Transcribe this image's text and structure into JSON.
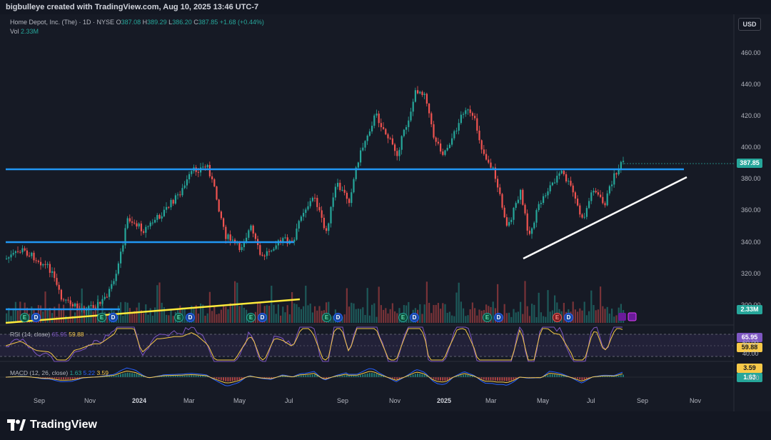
{
  "header": {
    "credit": "bigbulleye created with TradingView.com, Aug 10, 2025 13:46 UTC-7"
  },
  "legend": {
    "symbol": "Home Depot, Inc. (The) · 1D · NYSE",
    "o_label": "O",
    "o": "387.08",
    "h_label": "H",
    "h": "389.29",
    "l_label": "L",
    "l": "386.20",
    "c_label": "C",
    "c": "387.85",
    "change": "+1.68 (+0.44%)",
    "vol_label": "Vol",
    "vol": "2.33M"
  },
  "currency_button": "USD",
  "price_axis": [
    "460.00",
    "440.00",
    "420.00",
    "400.00",
    "380.00",
    "360.00",
    "340.00",
    "320.00",
    "300.00"
  ],
  "last_price_tag": "387.85",
  "volume_tag": "2.33M",
  "rsi": {
    "label": "RSI (14, close)",
    "v1": "65.95",
    "v2": "59.88",
    "tag1": "65.95",
    "tag2": "59.88",
    "axis": [
      "60.00",
      "40.00"
    ]
  },
  "macd": {
    "label": "MACD (12, 26, close)",
    "v1": "1.63",
    "v2": "5.22",
    "v3": "3.59",
    "tag1": "3.59",
    "tag2": "1.63",
    "axis": "0.00"
  },
  "time_axis": [
    {
      "label": "Sep",
      "bold": false
    },
    {
      "label": "Nov",
      "bold": false
    },
    {
      "label": "2024",
      "bold": true
    },
    {
      "label": "Mar",
      "bold": false
    },
    {
      "label": "May",
      "bold": false
    },
    {
      "label": "Jul",
      "bold": false
    },
    {
      "label": "Sep",
      "bold": false
    },
    {
      "label": "Nov",
      "bold": false
    },
    {
      "label": "2025",
      "bold": true
    },
    {
      "label": "Mar",
      "bold": false
    },
    {
      "label": "May",
      "bold": false
    },
    {
      "label": "Jul",
      "bold": false
    },
    {
      "label": "Sep",
      "bold": false
    },
    {
      "label": "Nov",
      "bold": false
    }
  ],
  "events": [
    "E",
    "D",
    "E",
    "D",
    "E",
    "D",
    "E",
    "D",
    "E",
    "D",
    "E",
    "D",
    "E",
    "D",
    "E",
    "D"
  ],
  "brand": "TradingView",
  "colors": {
    "bg": "#161a25",
    "up": "#26a69a",
    "down": "#ef5350",
    "level": "#2196f3",
    "trend": "#ffeb3b",
    "support": "#ffffff",
    "rsi": "#7e57c2",
    "signal": "#f7c948"
  }
}
